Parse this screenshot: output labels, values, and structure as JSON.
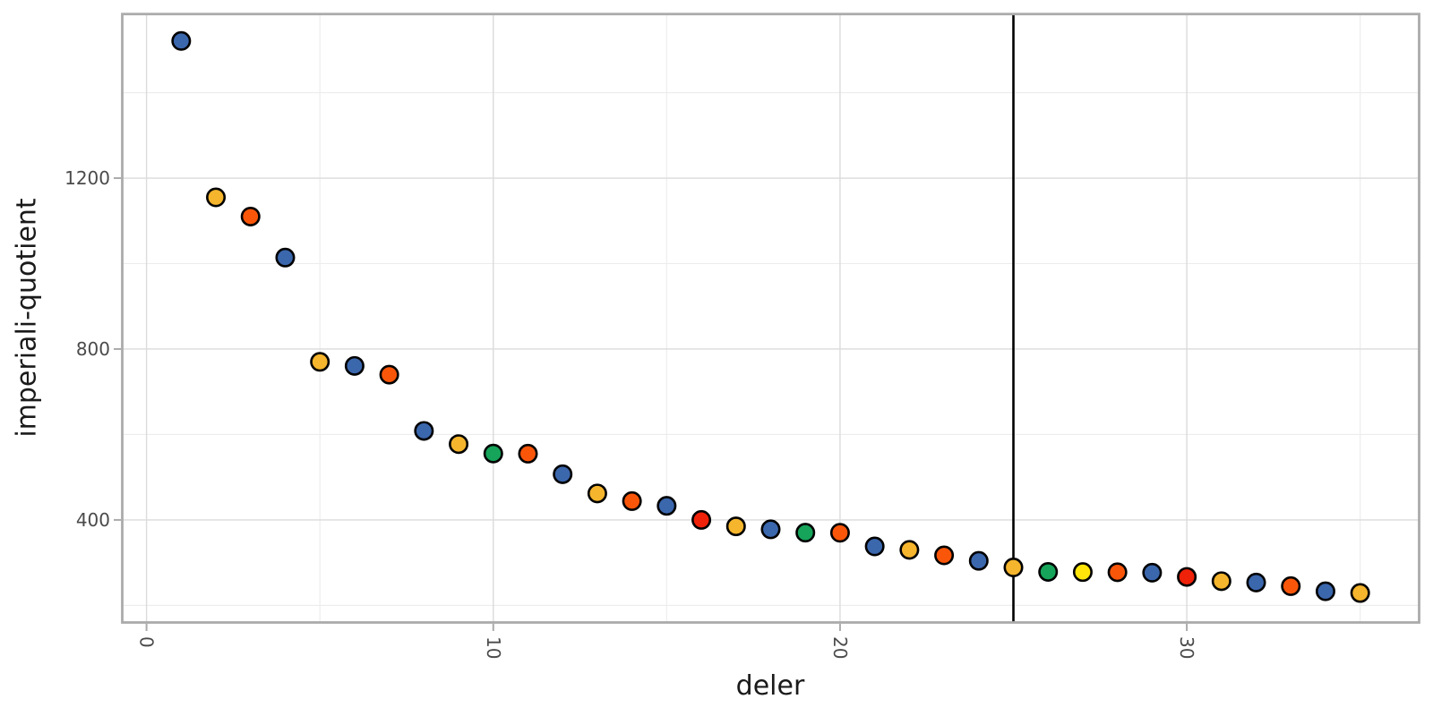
{
  "figure": {
    "background": "#ffffff",
    "panel_border_color": "#ababab",
    "grid_major_color": "#dbdbdb",
    "grid_minor_color": "#ececec",
    "tick_color": "#ababab",
    "tick_label_color": "#4a4a4a",
    "axis_title_color": "#1a1a1a",
    "vline_color": "#000000",
    "point_stroke_color": "#000000"
  },
  "chart_data": {
    "type": "scatter",
    "title": "",
    "xlabel": "deler",
    "ylabel": "imperiali-quotient",
    "grid": true,
    "legend": "none",
    "x_range": [
      -0.7,
      36.7
    ],
    "y_range": [
      160,
      1584
    ],
    "x_major_ticks": [
      0,
      10,
      20,
      30
    ],
    "x_tick_labels": [
      "0",
      "10",
      "20",
      "30"
    ],
    "x_minor_gridlines": [
      5,
      15,
      25,
      35
    ],
    "y_major_ticks": [
      400,
      800,
      1200
    ],
    "y_tick_labels": [
      "400",
      "800",
      "1200"
    ],
    "y_minor_gridlines": [
      200,
      600,
      1000,
      1400
    ],
    "vline_x": 25,
    "group_colors": {
      "blue": "#3b67ad",
      "gold": "#f5b52d",
      "orange": "#fa560a",
      "green": "#16a45a",
      "red": "#ef2109",
      "yellow": "#ffe50a"
    },
    "points": [
      {
        "x": 1,
        "y": 1521,
        "group": "blue"
      },
      {
        "x": 2,
        "y": 1155,
        "group": "gold"
      },
      {
        "x": 3,
        "y": 1110,
        "group": "orange"
      },
      {
        "x": 4,
        "y": 1014,
        "group": "blue"
      },
      {
        "x": 5,
        "y": 770,
        "group": "gold"
      },
      {
        "x": 6,
        "y": 760.5,
        "group": "blue"
      },
      {
        "x": 7,
        "y": 740,
        "group": "orange"
      },
      {
        "x": 8,
        "y": 608.4,
        "group": "blue"
      },
      {
        "x": 9,
        "y": 577.5,
        "group": "gold"
      },
      {
        "x": 10,
        "y": 555.4,
        "group": "green"
      },
      {
        "x": 11,
        "y": 555,
        "group": "orange"
      },
      {
        "x": 12,
        "y": 507,
        "group": "blue"
      },
      {
        "x": 13,
        "y": 462,
        "group": "gold"
      },
      {
        "x": 14,
        "y": 444,
        "group": "orange"
      },
      {
        "x": 15,
        "y": 433,
        "group": "blue"
      },
      {
        "x": 16,
        "y": 400,
        "group": "red"
      },
      {
        "x": 17,
        "y": 385,
        "group": "gold"
      },
      {
        "x": 18,
        "y": 378,
        "group": "blue"
      },
      {
        "x": 19,
        "y": 370.2,
        "group": "green"
      },
      {
        "x": 20,
        "y": 370,
        "group": "orange"
      },
      {
        "x": 21,
        "y": 338,
        "group": "blue"
      },
      {
        "x": 22,
        "y": 330,
        "group": "gold"
      },
      {
        "x": 23,
        "y": 317.1,
        "group": "orange"
      },
      {
        "x": 24,
        "y": 304.2,
        "group": "blue"
      },
      {
        "x": 25,
        "y": 288.8,
        "group": "gold"
      },
      {
        "x": 26,
        "y": 278.4,
        "group": "green"
      },
      {
        "x": 27,
        "y": 278,
        "group": "yellow"
      },
      {
        "x": 28,
        "y": 277.6,
        "group": "orange"
      },
      {
        "x": 29,
        "y": 276.5,
        "group": "blue"
      },
      {
        "x": 30,
        "y": 266.7,
        "group": "red"
      },
      {
        "x": 31,
        "y": 256.7,
        "group": "gold"
      },
      {
        "x": 32,
        "y": 253.5,
        "group": "blue"
      },
      {
        "x": 33,
        "y": 245,
        "group": "orange"
      },
      {
        "x": 34,
        "y": 233,
        "group": "blue"
      },
      {
        "x": 35,
        "y": 229,
        "group": "gold"
      }
    ]
  }
}
